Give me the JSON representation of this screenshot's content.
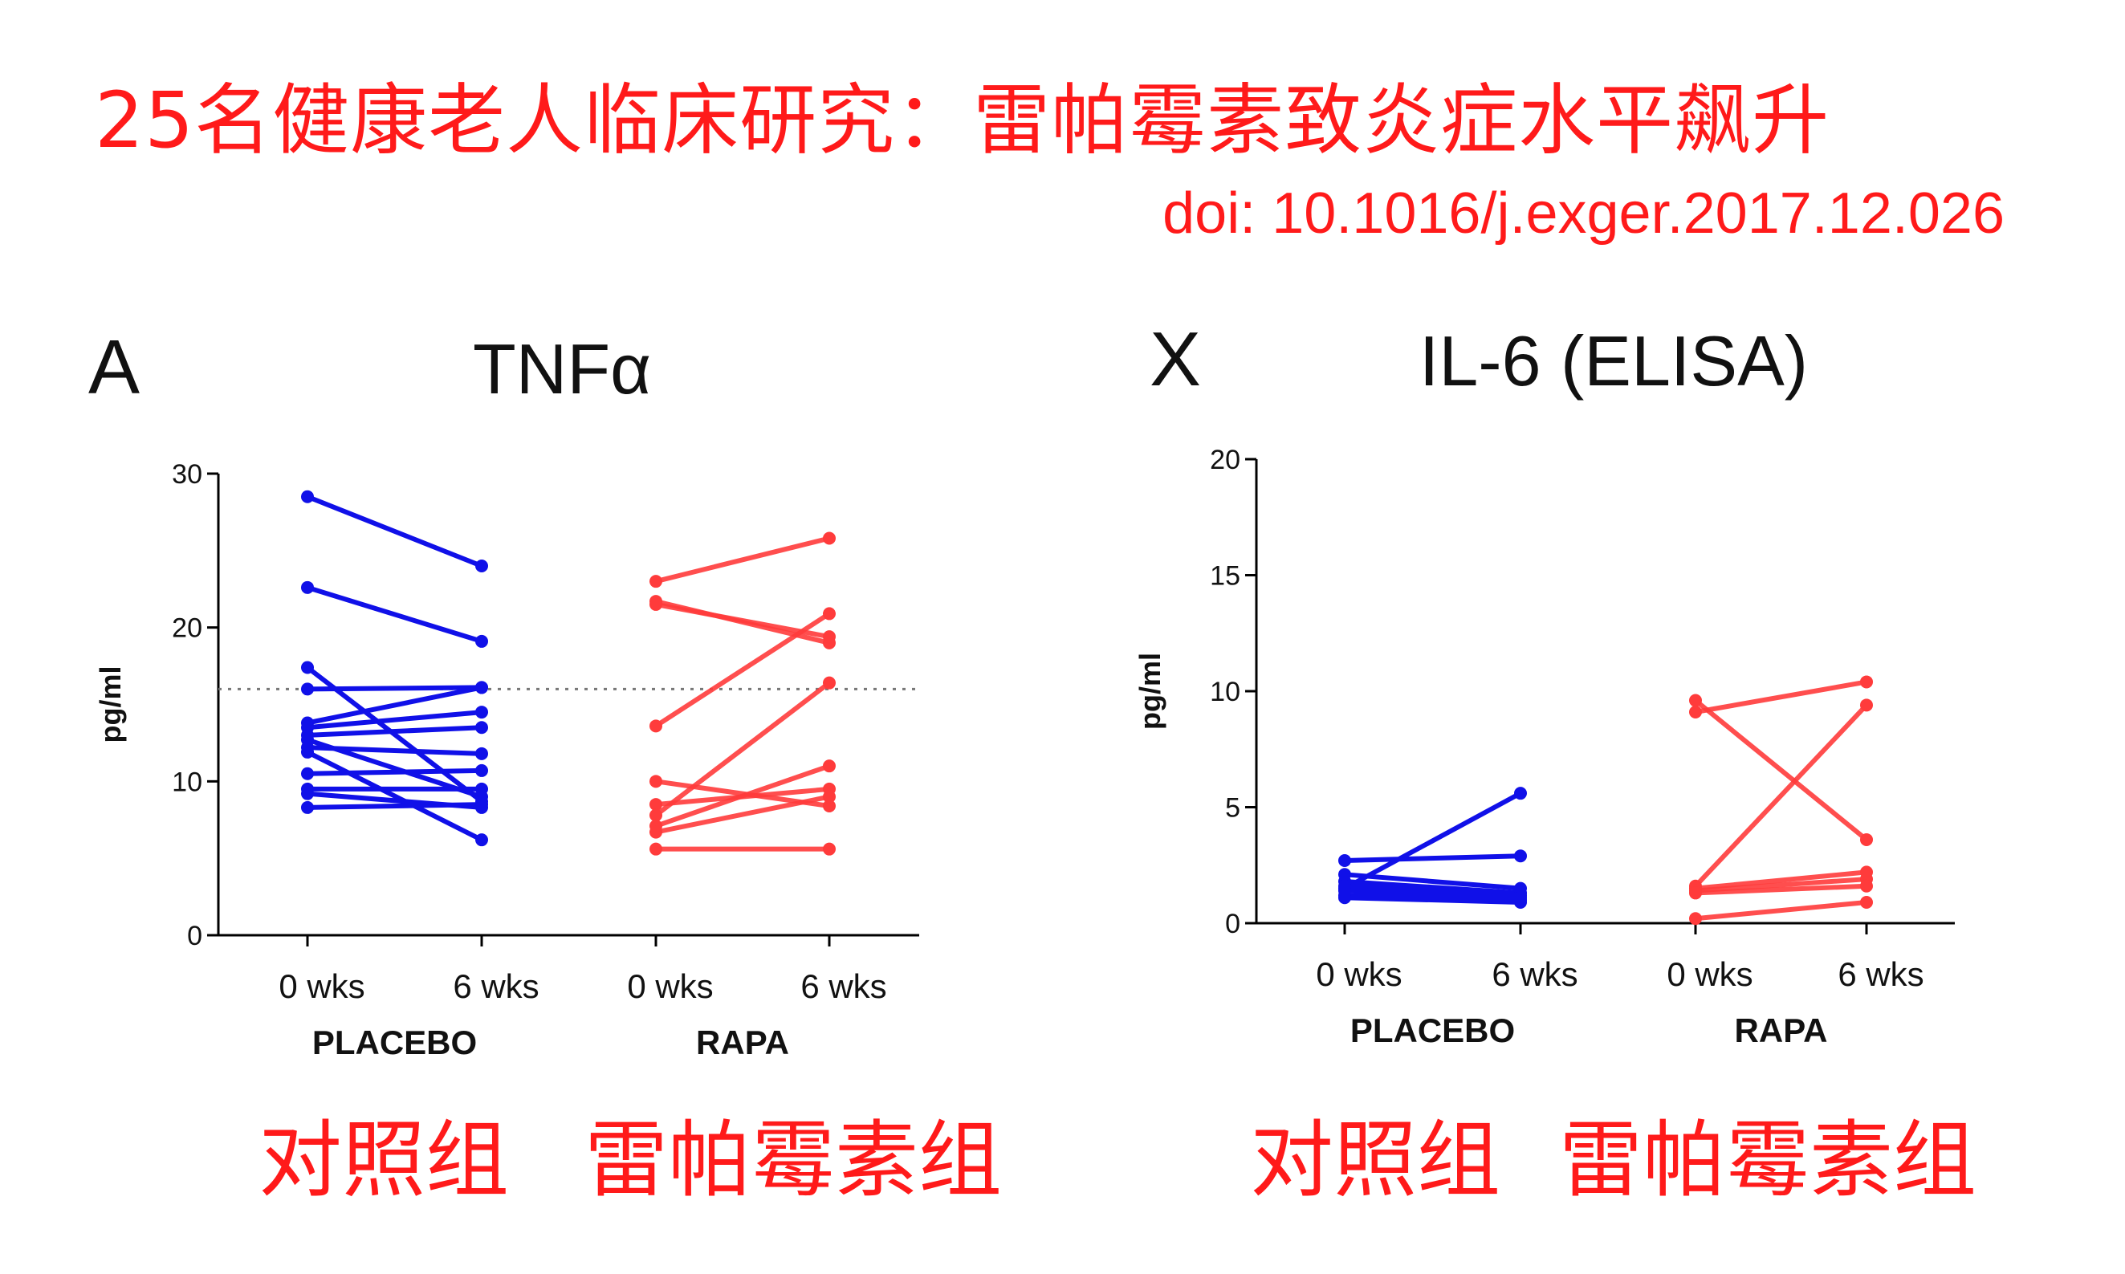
{
  "header": {
    "title": "25名健康老人临床研究：雷帕霉素致炎症水平飙升",
    "doi": "doi: 10.1016/j.exger.2017.12.026"
  },
  "colors": {
    "placebo": "#1010e8",
    "rapa": "#ff3b3b",
    "caption": "#ff1a1a",
    "axis": "#000000"
  },
  "captions": {
    "left_placebo": "对照组",
    "left_rapa": "雷帕霉素组",
    "right_placebo": "对照组",
    "right_rapa": "雷帕霉素组"
  },
  "chart_data": [
    {
      "type": "line",
      "panel_letter": "A",
      "title": "TNFα",
      "ylabel": "pg/ml",
      "ylim": [
        0,
        30
      ],
      "yticks": [
        0,
        10,
        20,
        30
      ],
      "reference_line": 16,
      "groups": [
        "PLACEBO",
        "RAPA"
      ],
      "timepoints": [
        "0 wks",
        "6 wks"
      ],
      "series": [
        {
          "name": "PLACEBO",
          "pairs": [
            [
              28.5,
              24.0
            ],
            [
              22.6,
              19.1
            ],
            [
              17.4,
              8.7
            ],
            [
              16.0,
              16.1
            ],
            [
              13.8,
              16.1
            ],
            [
              13.5,
              14.5
            ],
            [
              13.0,
              13.5
            ],
            [
              12.7,
              9.0
            ],
            [
              12.2,
              11.8
            ],
            [
              11.9,
              6.2
            ],
            [
              10.5,
              10.7
            ],
            [
              9.5,
              9.5
            ],
            [
              9.2,
              8.3
            ],
            [
              8.3,
              8.5
            ]
          ]
        },
        {
          "name": "RAPA",
          "pairs": [
            [
              23.0,
              25.8
            ],
            [
              21.7,
              19.0
            ],
            [
              21.5,
              19.4
            ],
            [
              13.6,
              20.9
            ],
            [
              10.0,
              8.4
            ],
            [
              8.5,
              9.5
            ],
            [
              7.8,
              16.4
            ],
            [
              7.1,
              11.0
            ],
            [
              6.7,
              9.0
            ],
            [
              5.6,
              5.6
            ]
          ]
        }
      ]
    },
    {
      "type": "line",
      "panel_letter": "X",
      "title": "IL-6 (ELISA)",
      "ylabel": "pg/ml",
      "ylim": [
        0,
        20
      ],
      "yticks": [
        0,
        5,
        10,
        15,
        20
      ],
      "groups": [
        "PLACEBO",
        "RAPA"
      ],
      "timepoints": [
        "0 wks",
        "6 wks"
      ],
      "series": [
        {
          "name": "PLACEBO",
          "pairs": [
            [
              1.5,
              5.6
            ],
            [
              2.7,
              2.9
            ],
            [
              2.1,
              1.5
            ],
            [
              1.8,
              1.3
            ],
            [
              1.6,
              1.2
            ],
            [
              1.4,
              1.1
            ],
            [
              1.2,
              1.0
            ],
            [
              1.1,
              0.9
            ]
          ]
        },
        {
          "name": "RAPA",
          "pairs": [
            [
              9.6,
              3.6
            ],
            [
              9.1,
              10.4
            ],
            [
              1.6,
              9.4
            ],
            [
              1.5,
              2.2
            ],
            [
              1.4,
              1.9
            ],
            [
              1.3,
              1.6
            ],
            [
              0.2,
              0.9
            ]
          ]
        }
      ]
    }
  ]
}
